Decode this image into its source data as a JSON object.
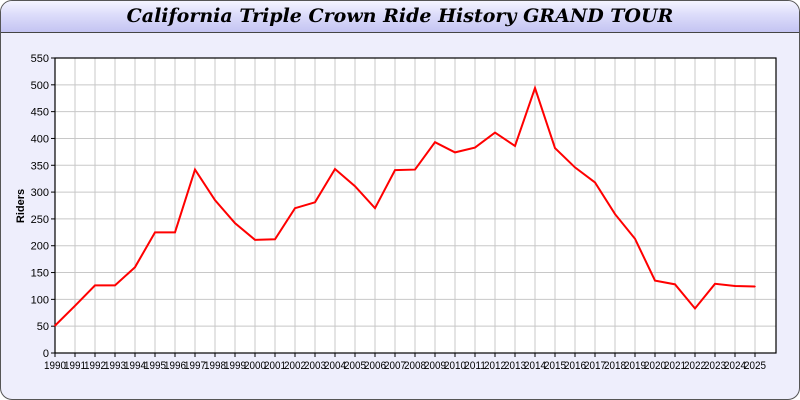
{
  "chart_data": {
    "type": "line",
    "title": "California Triple Crown Ride History GRAND TOUR",
    "xlabel": "",
    "ylabel": "Riders",
    "ylim": [
      0,
      550
    ],
    "yticks": [
      0,
      50,
      100,
      150,
      200,
      250,
      300,
      350,
      400,
      450,
      500,
      550
    ],
    "grid": true,
    "x": [
      "1990",
      "1991",
      "1992",
      "1993",
      "1994",
      "1995",
      "1996",
      "1997",
      "1998",
      "1999",
      "2000",
      "2001",
      "2002",
      "2003",
      "2004",
      "2005",
      "2006",
      "2007",
      "2008",
      "2009",
      "2010",
      "2011",
      "2012",
      "2013",
      "2014",
      "2015",
      "2016",
      "2017",
      "2018",
      "2019",
      "2020",
      "2021",
      "2022",
      "2023",
      "2024",
      "2025"
    ],
    "series": [
      {
        "color": "#ff0000",
        "values": [
          51,
          88,
          126,
          126,
          160,
          225,
          225,
          342,
          285,
          242,
          211,
          212,
          270,
          281,
          343,
          311,
          270,
          341,
          342,
          393,
          374,
          383,
          411,
          386,
          494,
          382,
          346,
          318,
          259,
          213,
          135,
          128,
          83,
          129,
          125,
          124
        ]
      }
    ]
  }
}
